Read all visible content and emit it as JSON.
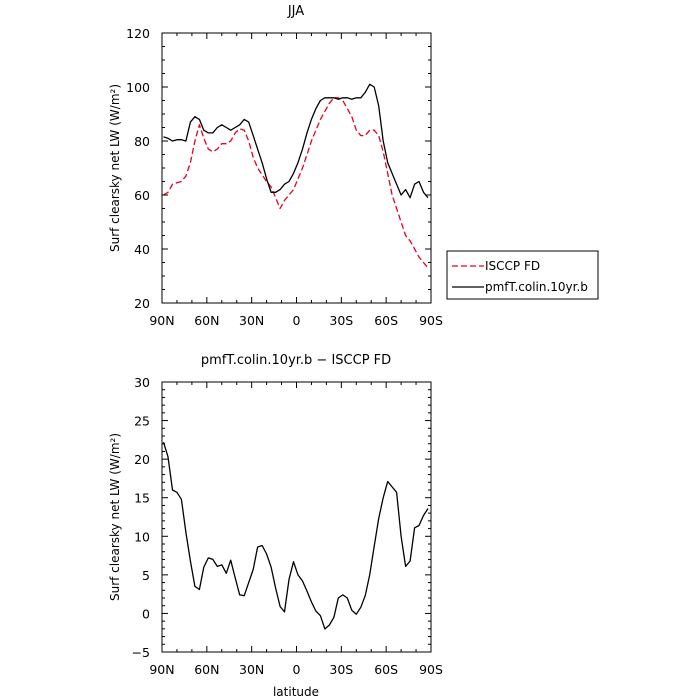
{
  "chart_data": [
    {
      "type": "line",
      "title": "JJA",
      "xlabel": "",
      "ylabel": "Surf clearsky net LW (W/m²)",
      "x_ticklabels": [
        "90N",
        "60N",
        "30N",
        "0",
        "30S",
        "60S",
        "90S"
      ],
      "y_ticklabels": [
        "20",
        "40",
        "60",
        "80",
        "100",
        "120"
      ],
      "xlim": [
        90,
        -90
      ],
      "ylim": [
        20,
        120
      ],
      "legend_position": "right-bottom outside",
      "series": [
        {
          "name": "ISCCP FD",
          "color": "#e8001c",
          "style": "dashed",
          "x": [
            89,
            86,
            83,
            80,
            77,
            74,
            71,
            68,
            65,
            62,
            59,
            56,
            53,
            50,
            47,
            44,
            41,
            38,
            35,
            32,
            29,
            26,
            23,
            20,
            17,
            14,
            11,
            8,
            5,
            2,
            -1,
            -4,
            -7,
            -10,
            -13,
            -16,
            -19,
            -22,
            -25,
            -28,
            -31,
            -34,
            -37,
            -40,
            -43,
            -46,
            -49,
            -52,
            -55,
            -58,
            -61,
            -64,
            -67,
            -70,
            -73,
            -76,
            -79,
            -82,
            -85,
            -88
          ],
          "y": [
            60,
            61,
            64,
            64.5,
            65,
            67,
            72,
            80,
            86,
            81,
            77,
            76,
            77,
            79,
            79,
            80,
            83,
            84.5,
            84,
            80,
            74,
            70,
            67.5,
            65,
            63,
            59,
            55,
            58,
            60,
            62,
            66,
            70,
            75,
            80,
            84,
            88,
            91,
            94,
            96,
            96,
            95,
            92,
            89,
            84,
            82,
            82,
            84,
            84,
            82,
            76,
            68,
            60,
            55,
            50,
            45,
            43,
            40,
            37,
            35,
            33
          ]
        },
        {
          "name": "pmfT.colin.10yr.b",
          "color": "#000000",
          "style": "solid",
          "x": [
            89,
            86,
            83,
            80,
            77,
            74,
            71,
            68,
            65,
            62,
            59,
            56,
            53,
            50,
            47,
            44,
            41,
            38,
            35,
            32,
            29,
            26,
            23,
            20,
            17,
            14,
            11,
            8,
            5,
            2,
            -1,
            -4,
            -7,
            -10,
            -13,
            -16,
            -19,
            -22,
            -25,
            -28,
            -31,
            -34,
            -37,
            -40,
            -43,
            -46,
            -49,
            -52,
            -55,
            -58,
            -61,
            -64,
            -67,
            -70,
            -73,
            -76,
            -79,
            -82,
            -85,
            -88
          ],
          "y": [
            81.5,
            81,
            80,
            80.5,
            80.5,
            80,
            87,
            89,
            88,
            84,
            83,
            83,
            85,
            86,
            85,
            84,
            85,
            86,
            88,
            87,
            82,
            77,
            72,
            66,
            61,
            61,
            62,
            64,
            65,
            68,
            72,
            77,
            83,
            88,
            92,
            95,
            96,
            96,
            96,
            95.5,
            96,
            96,
            95.5,
            96,
            96,
            98,
            101,
            100,
            93,
            80,
            72,
            68,
            64,
            60,
            62,
            59,
            64,
            65,
            61,
            59
          ]
        }
      ]
    },
    {
      "type": "line",
      "title": "pmfT.colin.10yr.b − ISCCP FD",
      "xlabel": "latitude",
      "ylabel": "Surf clearsky net LW (W/m²)",
      "x_ticklabels": [
        "90N",
        "60N",
        "30N",
        "0",
        "30S",
        "60S",
        "90S"
      ],
      "y_ticklabels": [
        "−5",
        "0",
        "5",
        "10",
        "15",
        "20",
        "25",
        "30"
      ],
      "xlim": [
        90,
        -90
      ],
      "ylim": [
        -5,
        30
      ],
      "series": [
        {
          "color": "#000000",
          "style": "solid",
          "x": [
            89,
            86,
            83,
            80,
            77,
            74,
            71,
            68,
            65,
            62,
            59,
            56,
            53,
            50,
            47,
            44,
            41,
            38,
            35,
            32,
            29,
            26,
            23,
            20,
            17,
            14,
            11,
            8,
            5,
            2,
            -1,
            -4,
            -7,
            -10,
            -13,
            -16,
            -19,
            -22,
            -25,
            -28,
            -31,
            -34,
            -37,
            -40,
            -43,
            -46,
            -49,
            -52,
            -55,
            -58,
            -61,
            -64,
            -67,
            -70,
            -73,
            -76,
            -79,
            -82,
            -85,
            -88
          ],
          "y": [
            22.2,
            20.3,
            16.0,
            15.7,
            14.8,
            10.5,
            6.8,
            3.5,
            3.1,
            6.0,
            7.2,
            7.0,
            6.1,
            6.3,
            5.2,
            6.9,
            4.6,
            2.4,
            2.3,
            4.0,
            5.7,
            8.6,
            8.8,
            7.7,
            6.0,
            3.3,
            0.9,
            0.2,
            4.4,
            6.7,
            5.0,
            4.2,
            2.9,
            1.5,
            0.3,
            -0.3,
            -2.0,
            -1.5,
            -0.5,
            2.0,
            2.4,
            2.0,
            0.4,
            -0.1,
            0.8,
            2.3,
            5.0,
            8.7,
            12.3,
            15.0,
            17.1,
            16.4,
            15.7,
            10.0,
            6.1,
            6.8,
            11.1,
            11.4,
            12.7,
            13.6
          ]
        }
      ]
    }
  ]
}
